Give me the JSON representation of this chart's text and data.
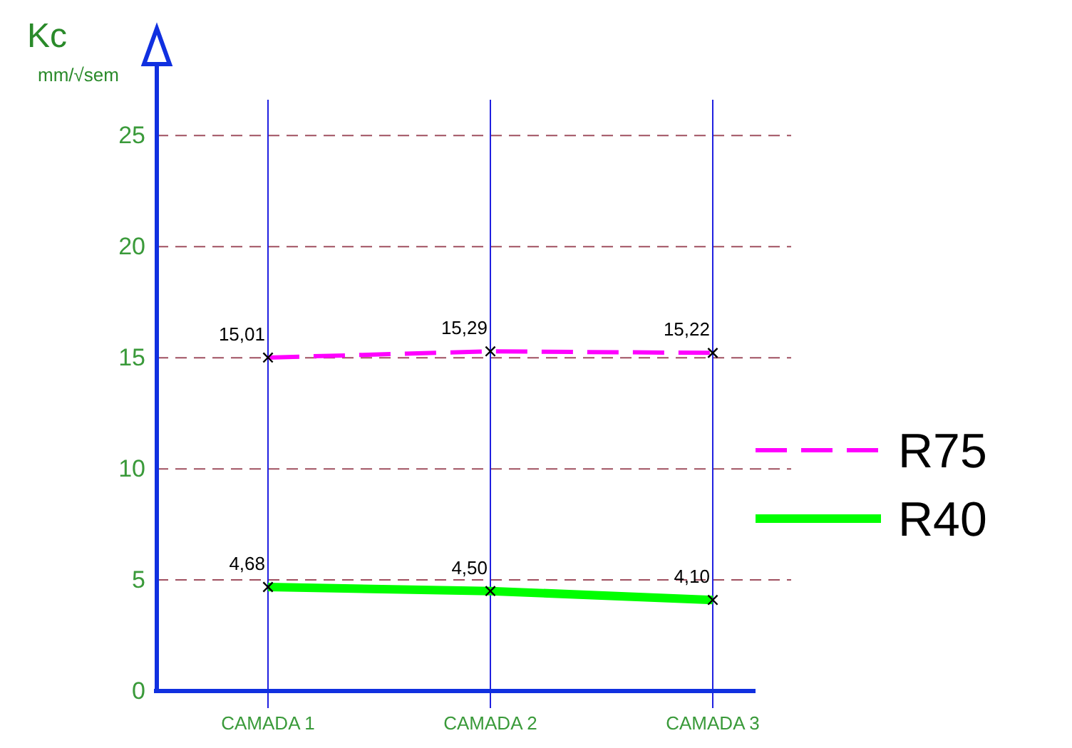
{
  "chart_data": {
    "type": "line",
    "ylabel": "Kc",
    "subtitle": "mm/√sem",
    "categories": [
      "CAMADA 1",
      "CAMADA 2",
      "CAMADA 3"
    ],
    "series": [
      {
        "name": "R75",
        "color": "#ff00ff",
        "values": [
          15.01,
          15.29,
          15.22
        ],
        "line_style": "dashed"
      },
      {
        "name": "R40",
        "color": "#00ff00",
        "values": [
          4.68,
          4.5,
          4.1
        ],
        "line_style": "solid"
      }
    ],
    "value_labels": [
      "15,01",
      "15,29",
      "15,22",
      "4,68",
      "4,50",
      "4,10"
    ],
    "ylim": [
      0,
      27
    ],
    "yticks": [
      0,
      5,
      10,
      15,
      20,
      25
    ],
    "grid": true,
    "legend": "right",
    "marker": "cross"
  }
}
